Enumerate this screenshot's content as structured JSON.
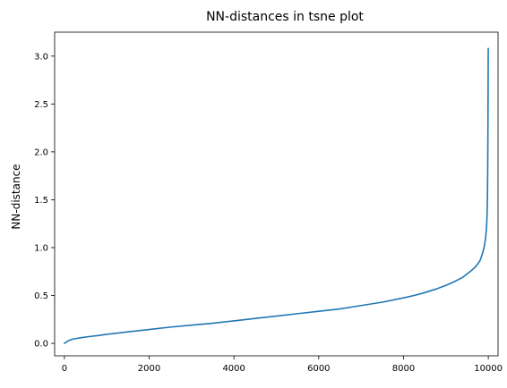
{
  "chart_data": {
    "type": "line",
    "title": "NN-distances in tsne plot",
    "xlabel": "",
    "ylabel": "NN-distance",
    "xlim": [
      -230,
      10230
    ],
    "ylim": [
      -0.13,
      3.25
    ],
    "xticks": [
      0,
      2000,
      4000,
      6000,
      8000,
      10000
    ],
    "yticks": [
      0.0,
      0.5,
      1.0,
      1.5,
      2.0,
      2.5,
      3.0
    ],
    "xtick_labels": [
      "0",
      "2000",
      "4000",
      "6000",
      "8000",
      "10000"
    ],
    "ytick_labels": [
      "0.0",
      "0.5",
      "1.0",
      "1.5",
      "2.0",
      "2.5",
      "3.0"
    ],
    "grid": false,
    "series": [
      {
        "color": "#1f77b4",
        "x": [
          0,
          100,
          200,
          400,
          600,
          800,
          1000,
          1500,
          2000,
          2500,
          3000,
          3500,
          4000,
          4500,
          5000,
          5500,
          6000,
          6500,
          7000,
          7500,
          8000,
          8250,
          8500,
          8750,
          9000,
          9200,
          9400,
          9500,
          9600,
          9700,
          9800,
          9850,
          9900,
          9920,
          9940,
          9960,
          9970,
          9980,
          9985,
          9990,
          9993,
          9995,
          9997,
          9999
        ],
        "y": [
          0.0,
          0.03,
          0.045,
          0.06,
          0.072,
          0.082,
          0.095,
          0.12,
          0.145,
          0.17,
          0.19,
          0.21,
          0.235,
          0.26,
          0.285,
          0.31,
          0.335,
          0.36,
          0.395,
          0.43,
          0.475,
          0.5,
          0.53,
          0.565,
          0.605,
          0.645,
          0.69,
          0.725,
          0.76,
          0.8,
          0.86,
          0.92,
          1.0,
          1.05,
          1.12,
          1.22,
          1.32,
          1.52,
          1.75,
          2.05,
          2.35,
          2.6,
          2.85,
          3.08
        ]
      }
    ]
  }
}
